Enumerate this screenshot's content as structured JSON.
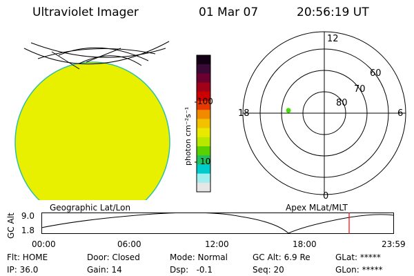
{
  "header": {
    "instrument": "Ultraviolet Imager",
    "date": "01 Mar 07",
    "time": "20:56:19 UT"
  },
  "colorbar": {
    "unit_label": "photon cm⁻²s⁻¹",
    "ticks": [
      "100",
      "10"
    ],
    "colors": [
      "#140014",
      "#3a0a36",
      "#6b0030",
      "#a00018",
      "#cc0000",
      "#e83a00",
      "#f28a00",
      "#f2c200",
      "#e8e800",
      "#b8e800",
      "#5ad000",
      "#20c060",
      "#00cccc",
      "#a0eeee",
      "#e6e6e6"
    ]
  },
  "polar_plot": {
    "ring_labels": [
      "60",
      "70",
      "80"
    ],
    "hour_labels": {
      "top": "12",
      "left": "18",
      "right": "6",
      "bottom": "0"
    }
  },
  "timeline": {
    "left_title": "Geographic Lat/Lon",
    "right_title": "Apex MLat/MLT",
    "y_axis_label": "GC Alt",
    "y_ticks": [
      "9.0",
      "1.8"
    ],
    "x_ticks": [
      "00:00",
      "06:00",
      "12:00",
      "18:00",
      "23:59"
    ],
    "current_time_marker": "20:56",
    "marker_color": "#ff0000"
  },
  "info": {
    "filter": "Flt: HOME",
    "door": "Door: Closed",
    "mode": "Mode: Normal",
    "gc_alt": "GC Alt: 6.9 Re",
    "glat": "GLat: *****",
    "ip": "IP: 36.0",
    "gain": "Gain: 14",
    "dsp": "Dsp:   -0.1",
    "seq": "Seq: 20",
    "glon": "GLon: *****"
  },
  "globe_color": "#e8f000"
}
